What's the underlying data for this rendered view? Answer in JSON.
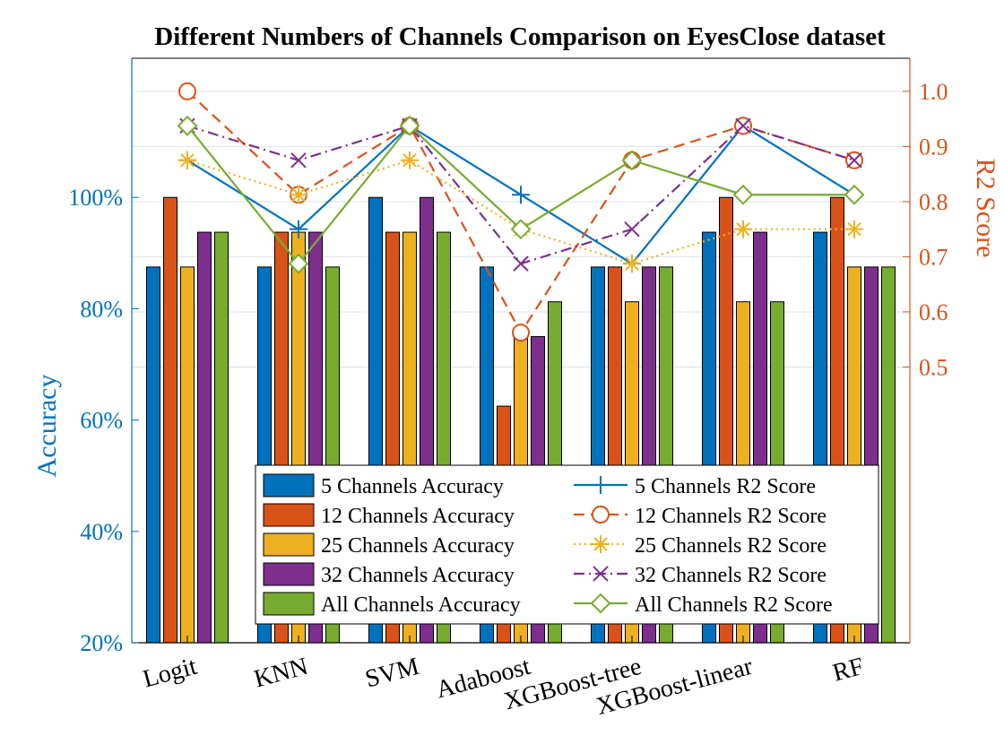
{
  "chart_data": {
    "type": "bar",
    "title": "Different Numbers of Channels Comparison on EyesClose dataset",
    "ylabel_left": "Accuracy",
    "ylabel_right": "R2 Score",
    "categories": [
      "Logit",
      "KNN",
      "SVM",
      "Adaboost",
      "XGBoost-tree",
      "XGBoost-linear",
      "RF"
    ],
    "left_axis": {
      "range": [
        0.2,
        1.25
      ],
      "ticks": [
        0.2,
        0.4,
        0.6,
        0.8,
        1.0
      ],
      "tick_labels": [
        "20%",
        "40%",
        "60%",
        "80%",
        "100%"
      ]
    },
    "right_axis": {
      "range": [
        0.0,
        1.06
      ],
      "ticks": [
        0.5,
        0.6,
        0.7,
        0.8,
        0.9,
        1.0
      ],
      "tick_labels": [
        "0.5",
        "0.6",
        "0.7",
        "0.8",
        "0.9",
        "1.0"
      ]
    },
    "bar_series": [
      {
        "name": "5 Channels Accuracy",
        "color": "#0072BD",
        "values": [
          0.875,
          0.875,
          1.0,
          0.875,
          0.875,
          0.9375,
          0.9375
        ]
      },
      {
        "name": "12 Channels Accuracy",
        "color": "#D95319",
        "values": [
          1.0,
          0.9375,
          0.9375,
          0.625,
          0.875,
          1.0,
          1.0
        ]
      },
      {
        "name": "25 Channels Accuracy",
        "color": "#EDB120",
        "values": [
          0.875,
          0.9375,
          0.9375,
          0.75,
          0.8125,
          0.8125,
          0.875
        ]
      },
      {
        "name": "32 Channels Accuracy",
        "color": "#7E2F8E",
        "values": [
          0.9375,
          0.9375,
          1.0,
          0.75,
          0.875,
          0.9375,
          0.875
        ]
      },
      {
        "name": "All Channels Accuracy",
        "color": "#77AC30",
        "values": [
          0.9375,
          0.875,
          0.9375,
          0.8125,
          0.875,
          0.8125,
          0.875
        ]
      }
    ],
    "line_series": [
      {
        "name": "5 Channels R2 Score",
        "color": "#0072BD",
        "dash": "solid",
        "marker": "plus",
        "values": [
          0.875,
          0.75,
          0.9375,
          0.8125,
          0.6875,
          0.9375,
          0.8125
        ]
      },
      {
        "name": "12 Channels R2 Score",
        "color": "#D95319",
        "dash": "dashed",
        "marker": "circle",
        "values": [
          1.0,
          0.8125,
          0.9375,
          0.5625,
          0.875,
          0.9375,
          0.875
        ]
      },
      {
        "name": "25 Channels R2 Score",
        "color": "#EDB120",
        "dash": "dotted",
        "marker": "asterisk",
        "values": [
          0.875,
          0.8125,
          0.875,
          0.75,
          0.6875,
          0.75,
          0.75
        ]
      },
      {
        "name": "32 Channels R2 Score",
        "color": "#7E2F8E",
        "dash": "dashdot",
        "marker": "x",
        "values": [
          0.9375,
          0.875,
          0.9375,
          0.6875,
          0.75,
          0.9375,
          0.875
        ]
      },
      {
        "name": "All Channels R2 Score",
        "color": "#77AC30",
        "dash": "solid",
        "marker": "diamond",
        "values": [
          0.9375,
          0.6875,
          0.9375,
          0.75,
          0.875,
          0.8125,
          0.8125
        ]
      }
    ],
    "grid": "horizontal",
    "legend_position": "bottom-center"
  }
}
